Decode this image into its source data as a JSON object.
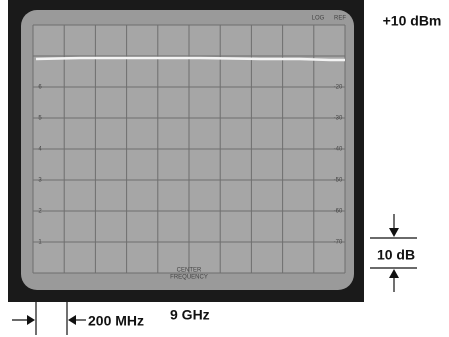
{
  "annotations": {
    "reference_level": "+10 dBm",
    "vertical_scale": "10 dB",
    "span_per_division": "200 MHz",
    "center_frequency": "9 GHz"
  },
  "screen": {
    "top_labels": [
      "LOG",
      "REF"
    ],
    "left_labels": [
      "6",
      "5",
      "4",
      "3",
      "2",
      "1"
    ],
    "right_labels": [
      "-20",
      "-30",
      "-40",
      "-50",
      "-60",
      "-70"
    ],
    "bottom_labels": [
      "CENTER",
      "FREQUENCY"
    ]
  }
}
